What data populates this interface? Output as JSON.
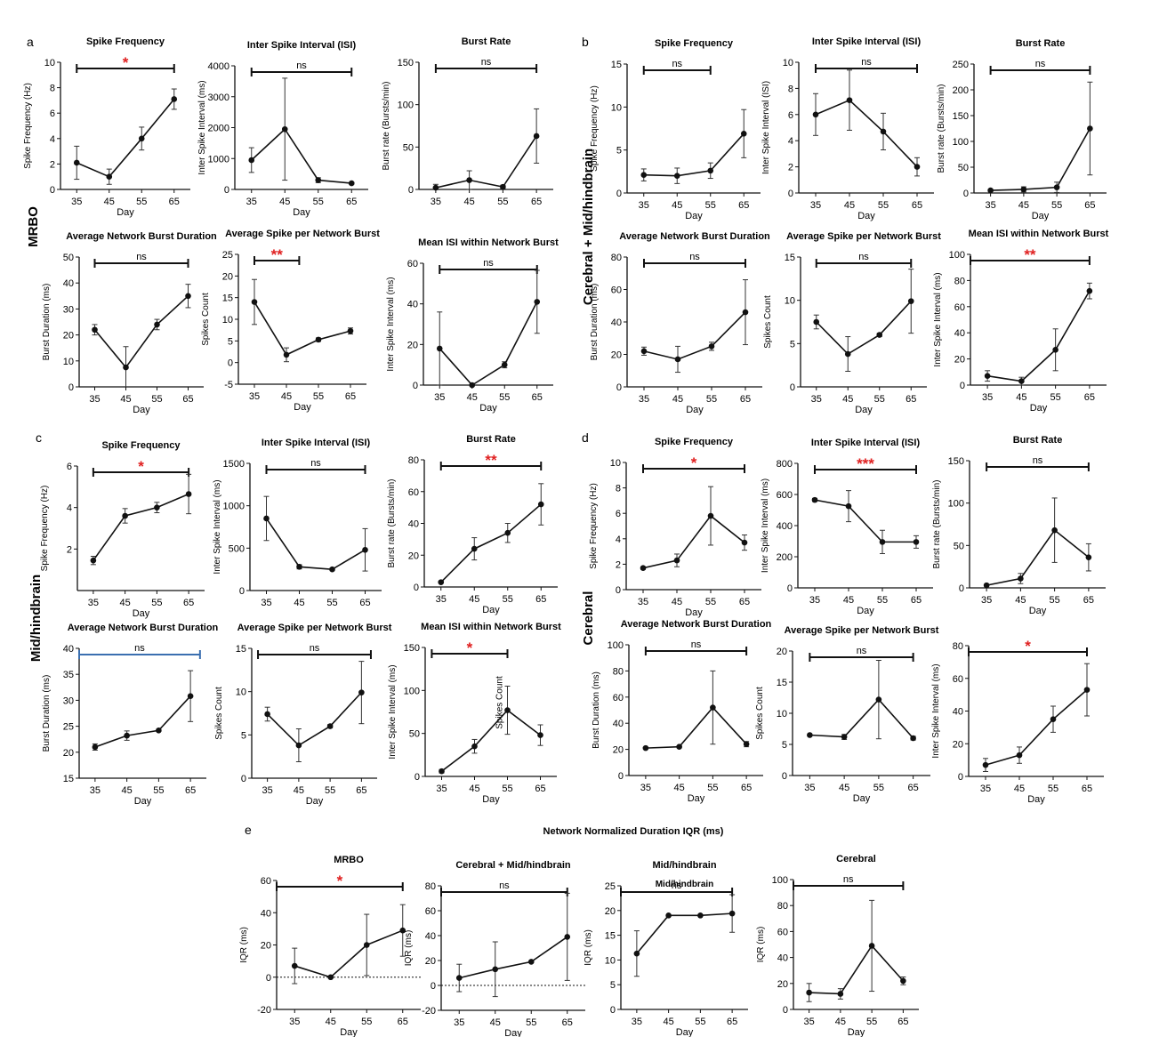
{
  "figure": {
    "panel_letters": {
      "a": "a",
      "b": "b",
      "c": "c",
      "d": "d",
      "e": "e"
    },
    "group_labels": {
      "a": "MRBO",
      "b": "Cerebral + Mid/hindbrain",
      "c": "Mid/hindbrain",
      "d": "Cerebral"
    },
    "panel_e_title": "Network Normalized Duration IQR (ms)",
    "colors": {
      "line": "#111111",
      "significance_star": "#e02020",
      "error_bar": "#333333"
    }
  },
  "chart_data": [
    {
      "id": "a1",
      "panel": "a",
      "type": "line",
      "title": "Spike Frequency",
      "ylabel": "Spike Frequency (Hz)",
      "xlabel": "Day",
      "x": [
        35,
        45,
        55,
        65
      ],
      "values": [
        2.1,
        1.0,
        4.0,
        7.1
      ],
      "errors": [
        1.3,
        0.6,
        0.9,
        0.8
      ],
      "ylim": [
        0,
        10
      ],
      "yticks": [
        0,
        2,
        4,
        6,
        8,
        10
      ],
      "sig": "*",
      "sig_span": [
        35,
        65
      ]
    },
    {
      "id": "a2",
      "panel": "a",
      "type": "line",
      "title": "Inter Spike Interval (ISI)",
      "ylabel": "Inter Spike Interval (ms)",
      "xlabel": "Day",
      "x": [
        35,
        45,
        55,
        65
      ],
      "values": [
        950,
        1950,
        300,
        200
      ],
      "errors": [
        400,
        1650,
        80,
        30
      ],
      "ylim": [
        0,
        4000
      ],
      "yticks": [
        0,
        1000,
        2000,
        3000,
        4000
      ],
      "sig": "ns",
      "sig_span": [
        35,
        65
      ]
    },
    {
      "id": "a3",
      "panel": "a",
      "type": "line",
      "title": "Burst Rate",
      "ylabel": "Burst rate (Bursts/min)",
      "xlabel": "",
      "x": [
        35,
        45,
        55,
        65
      ],
      "values": [
        2,
        11,
        3,
        63
      ],
      "errors": [
        4,
        11,
        2,
        32
      ],
      "ylim": [
        0,
        150
      ],
      "yticks": [
        0,
        50,
        100,
        150
      ],
      "sig": "ns",
      "sig_span": [
        35,
        65
      ]
    },
    {
      "id": "a4",
      "panel": "a",
      "type": "line",
      "title": "Average Network Burst Duration",
      "ylabel": "Burst Duration (ms)",
      "xlabel": "Day",
      "x": [
        35,
        45,
        55,
        65
      ],
      "values": [
        22,
        7.5,
        24,
        35
      ],
      "errors": [
        2,
        8,
        2,
        4.5
      ],
      "ylim": [
        0,
        50
      ],
      "yticks": [
        0,
        10,
        20,
        30,
        40,
        50
      ],
      "sig": "ns",
      "sig_span": [
        35,
        65
      ]
    },
    {
      "id": "a5",
      "panel": "a",
      "type": "line",
      "title": "Average Spike per Network Burst",
      "ylabel": "Spikes Count",
      "xlabel": "Day",
      "x": [
        35,
        45,
        55,
        65
      ],
      "values": [
        14,
        1.8,
        5.3,
        7.3
      ],
      "errors": [
        5.2,
        1.6,
        0.4,
        0.7
      ],
      "ylim": [
        -5,
        25
      ],
      "yticks": [
        -5,
        0,
        5,
        10,
        15,
        20,
        25
      ],
      "sig": "**",
      "sig_span": [
        35,
        49
      ]
    },
    {
      "id": "a6",
      "panel": "a",
      "type": "line",
      "title": "Mean ISI within Network Burst",
      "ylabel": "Inter Spike Interval (ms)",
      "xlabel": "Day",
      "x": [
        35,
        45,
        55,
        65
      ],
      "values": [
        18,
        0,
        10,
        41
      ],
      "errors": [
        18,
        0.5,
        1.5,
        15.5
      ],
      "ylim": [
        0,
        60
      ],
      "yticks": [
        0,
        20,
        40,
        60
      ],
      "sig": "ns",
      "sig_span": [
        35,
        65
      ]
    },
    {
      "id": "b1",
      "panel": "b",
      "type": "line",
      "title": "Spike Frequency",
      "ylabel": "Spike Frequency (Hz)",
      "xlabel": "Day",
      "x": [
        35,
        45,
        55,
        65
      ],
      "values": [
        2.1,
        2.0,
        2.6,
        6.9
      ],
      "errors": [
        0.7,
        0.9,
        0.9,
        2.8
      ],
      "ylim": [
        0,
        15
      ],
      "yticks": [
        0,
        5,
        10,
        15
      ],
      "sig": "ns",
      "sig_span": [
        35,
        55
      ]
    },
    {
      "id": "b2",
      "panel": "b",
      "type": "line",
      "title": "Inter Spike Interval (ISI)",
      "ylabel": "Inter Spike Interval (ISI)",
      "xlabel": "Day",
      "x": [
        35,
        45,
        55,
        65
      ],
      "values": [
        6.0,
        7.1,
        4.7,
        2.0
      ],
      "errors": [
        1.6,
        2.3,
        1.4,
        0.7
      ],
      "ylim": [
        0,
        10
      ],
      "yticks": [
        0,
        2,
        4,
        6,
        8,
        10
      ],
      "sig": "ns",
      "sig_span": [
        35,
        65
      ]
    },
    {
      "id": "b3",
      "panel": "b",
      "type": "line",
      "title": "Burst Rate",
      "ylabel": "Burst rate (Bursts/min)",
      "xlabel": "Day",
      "x": [
        35,
        45,
        55,
        65
      ],
      "values": [
        5,
        7,
        11,
        125
      ],
      "errors": [
        2,
        5,
        10,
        90
      ],
      "ylim": [
        0,
        250
      ],
      "yticks": [
        0,
        50,
        100,
        150,
        200,
        250
      ],
      "sig": "ns",
      "sig_span": [
        35,
        65
      ]
    },
    {
      "id": "b4",
      "panel": "b",
      "type": "line",
      "title": "Average Network Burst Duration",
      "ylabel": "Burst Duration (ms)",
      "xlabel": "Day",
      "x": [
        35,
        45,
        55,
        65
      ],
      "values": [
        22,
        17,
        25,
        46
      ],
      "errors": [
        2.5,
        8,
        2.5,
        20
      ],
      "ylim": [
        0,
        80
      ],
      "yticks": [
        0,
        20,
        40,
        60,
        80
      ],
      "sig": "ns",
      "sig_span": [
        35,
        65
      ]
    },
    {
      "id": "b5",
      "panel": "b",
      "type": "line",
      "title": "Average Spike per Network Burst",
      "ylabel": "Spikes Count",
      "xlabel": "Day",
      "x": [
        35,
        45,
        55,
        65
      ],
      "values": [
        7.5,
        3.8,
        6.0,
        9.9
      ],
      "errors": [
        0.8,
        2.0,
        0.2,
        3.7
      ],
      "ylim": [
        0,
        15
      ],
      "yticks": [
        0,
        5,
        10,
        15
      ],
      "sig": "ns",
      "sig_span": [
        35,
        65
      ]
    },
    {
      "id": "b6",
      "panel": "b",
      "type": "line",
      "title": "Mean ISI within Network Burst",
      "ylabel": "Inter Spike Interval (ms)",
      "xlabel": "Day",
      "x": [
        35,
        45,
        55,
        65
      ],
      "values": [
        7,
        3,
        27,
        72
      ],
      "errors": [
        4,
        3,
        16,
        6
      ],
      "ylim": [
        0,
        100
      ],
      "yticks": [
        0,
        20,
        40,
        60,
        80,
        100
      ],
      "sig": "**",
      "sig_span": [
        30,
        65
      ]
    },
    {
      "id": "c1",
      "panel": "c",
      "type": "line",
      "title": "Spike Frequency",
      "ylabel": "Spike Frequency (Hz)",
      "xlabel": "Day",
      "x": [
        35,
        45,
        55,
        65
      ],
      "values": [
        1.45,
        3.6,
        4.0,
        4.65
      ],
      "errors": [
        0.2,
        0.35,
        0.25,
        0.95
      ],
      "ylim": [
        0,
        6
      ],
      "yticks": [
        2,
        4,
        6
      ],
      "sig": "*",
      "sig_span": [
        35,
        65
      ]
    },
    {
      "id": "c2",
      "panel": "c",
      "type": "line",
      "title": "Inter Spike Interval (ISI)",
      "ylabel": "Inter Spike Interval (ms)",
      "xlabel": "",
      "x": [
        35,
        45,
        55,
        65
      ],
      "values": [
        850,
        280,
        250,
        480
      ],
      "errors": [
        260,
        25,
        15,
        250
      ],
      "ylim": [
        0,
        1500
      ],
      "yticks": [
        0,
        500,
        1000,
        1500
      ],
      "sig": "ns",
      "sig_span": [
        35,
        65
      ]
    },
    {
      "id": "c3",
      "panel": "c",
      "type": "line",
      "title": "Burst Rate",
      "ylabel": "Burst rate (Bursts/min)",
      "xlabel": "Day",
      "x": [
        35,
        45,
        55,
        65
      ],
      "values": [
        3,
        24,
        34,
        52
      ],
      "errors": [
        0.5,
        7,
        6,
        13
      ],
      "ylim": [
        0,
        80
      ],
      "yticks": [
        0,
        20,
        40,
        60,
        80
      ],
      "sig": "**",
      "sig_span": [
        35,
        65
      ]
    },
    {
      "id": "c4",
      "panel": "c",
      "type": "line",
      "title": "Average Network Burst Duration",
      "ylabel": "Burst Duration (ms)",
      "xlabel": "Day",
      "x": [
        35,
        45,
        55,
        65
      ],
      "values": [
        21,
        23.2,
        24.2,
        30.8
      ],
      "errors": [
        0.6,
        0.9,
        0.2,
        4.9
      ],
      "ylim": [
        15,
        40
      ],
      "yticks": [
        15,
        20,
        25,
        30,
        35,
        40
      ],
      "sig": "ns",
      "sig_span": [
        30,
        68
      ]
    },
    {
      "id": "c5",
      "panel": "c",
      "type": "line",
      "title": "Average Spike per Network Burst",
      "ylabel": "Spikes Count",
      "xlabel": "Day",
      "x": [
        35,
        45,
        55,
        65
      ],
      "values": [
        7.4,
        3.8,
        6.0,
        9.9
      ],
      "errors": [
        0.8,
        1.9,
        0.2,
        3.6
      ],
      "ylim": [
        0,
        15
      ],
      "yticks": [
        0,
        5,
        10,
        15
      ],
      "sig": "ns",
      "sig_span": [
        32,
        68
      ]
    },
    {
      "id": "c6",
      "panel": "c",
      "type": "line",
      "title": "Mean ISI within Network Burst",
      "ylabel": "Inter Spike Interval (ms)",
      "xlabel": "Day",
      "extra_label": "Spikes Count",
      "x": [
        35,
        45,
        55,
        65
      ],
      "values": [
        6,
        35,
        77,
        48
      ],
      "errors": [
        2,
        8,
        28,
        12
      ],
      "ylim": [
        0,
        150
      ],
      "yticks": [
        0,
        50,
        100,
        150
      ],
      "sig": "*",
      "sig_span": [
        32,
        55
      ]
    },
    {
      "id": "d1",
      "panel": "d",
      "type": "line",
      "title": "Spike Frequency",
      "ylabel": "Spike Frequency (Hz)",
      "xlabel": "Day",
      "x": [
        35,
        45,
        55,
        65
      ],
      "values": [
        1.7,
        2.3,
        5.8,
        3.7
      ],
      "errors": [
        0.1,
        0.5,
        2.3,
        0.6
      ],
      "ylim": [
        0,
        10
      ],
      "yticks": [
        0,
        2,
        4,
        6,
        8,
        10
      ],
      "sig": "*",
      "sig_span": [
        35,
        65
      ]
    },
    {
      "id": "d2",
      "panel": "d",
      "type": "line",
      "title": "Inter Spike Interval (ISI)",
      "ylabel": "Inter Spike Interval (ms)",
      "xlabel": "Day",
      "x": [
        35,
        45,
        55,
        65
      ],
      "values": [
        565,
        525,
        295,
        295
      ],
      "errors": [
        10,
        100,
        75,
        40
      ],
      "ylim": [
        0,
        800
      ],
      "yticks": [
        0,
        200,
        400,
        600,
        800
      ],
      "sig": "***",
      "sig_span": [
        35,
        65
      ]
    },
    {
      "id": "d3",
      "panel": "d",
      "type": "line",
      "title": "Burst Rate",
      "ylabel": "Burst rate (Bursts/min)",
      "xlabel": "Day",
      "x": [
        35,
        45,
        55,
        65
      ],
      "values": [
        3,
        11,
        68,
        36
      ],
      "errors": [
        0.5,
        6,
        38,
        16
      ],
      "ylim": [
        0,
        150
      ],
      "yticks": [
        0,
        50,
        100,
        150
      ],
      "sig": "ns",
      "sig_span": [
        35,
        65
      ]
    },
    {
      "id": "d4",
      "panel": "d",
      "type": "line",
      "title": "Average Network Burst Duration",
      "ylabel": "Burst Duration (ms)",
      "xlabel": "Day",
      "x": [
        35,
        45,
        55,
        65
      ],
      "values": [
        21,
        22,
        52,
        24
      ],
      "errors": [
        0.5,
        0.8,
        28,
        2
      ],
      "ylim": [
        0,
        100
      ],
      "yticks": [
        0,
        20,
        40,
        60,
        80,
        100
      ],
      "sig": "ns",
      "sig_span": [
        35,
        65
      ]
    },
    {
      "id": "d5",
      "panel": "d",
      "type": "line",
      "title": "Average Spike per Network Burst",
      "ylabel": "Spikes Count",
      "xlabel": "Day",
      "x": [
        35,
        45,
        55,
        65
      ],
      "values": [
        6.5,
        6.2,
        12.2,
        6.0
      ],
      "errors": [
        0.1,
        0.4,
        6.3,
        0.3
      ],
      "ylim": [
        0,
        20
      ],
      "yticks": [
        0,
        5,
        10,
        15,
        20
      ],
      "sig": "ns",
      "sig_span": [
        35,
        65
      ]
    },
    {
      "id": "d6",
      "panel": "d",
      "type": "line",
      "title": "",
      "ylabel": "Inter Spike Interval (ms)",
      "xlabel": "Day",
      "x": [
        35,
        45,
        55,
        65
      ],
      "values": [
        7,
        13,
        35,
        53
      ],
      "errors": [
        4,
        5,
        8,
        16
      ],
      "ylim": [
        0,
        80
      ],
      "yticks": [
        0,
        20,
        40,
        60,
        80
      ],
      "sig": "*",
      "sig_span": [
        30,
        65
      ]
    },
    {
      "id": "e1",
      "panel": "e",
      "type": "line",
      "title": "MRBO",
      "ylabel": "IQR (ms)",
      "xlabel": "Day",
      "x": [
        35,
        45,
        55,
        65
      ],
      "values": [
        7,
        0,
        20,
        29
      ],
      "errors": [
        11,
        0.5,
        19,
        16
      ],
      "ylim": [
        -20,
        60
      ],
      "yticks": [
        -20,
        0,
        20,
        40,
        60
      ],
      "sig": "*",
      "sig_span": [
        30,
        65
      ],
      "zero_line": true
    },
    {
      "id": "e2",
      "panel": "e",
      "type": "line",
      "title": "Cerebral + Mid/hindbrain",
      "ylabel": "IQR (ms)",
      "xlabel": "Day",
      "x": [
        35,
        45,
        55,
        65
      ],
      "values": [
        6,
        13,
        19,
        39
      ],
      "errors": [
        11,
        22,
        0.5,
        35
      ],
      "ylim": [
        -20,
        80
      ],
      "yticks": [
        -20,
        0,
        20,
        40,
        60,
        80
      ],
      "sig": "ns",
      "sig_span": [
        30,
        65
      ],
      "zero_line": true
    },
    {
      "id": "e3",
      "panel": "e",
      "type": "line",
      "title": "Mid/hindbrain",
      "ylabel": "IQR (ms)",
      "xlabel": "Day",
      "extra_label": "Mid/hindbrain",
      "x": [
        35,
        45,
        55,
        65
      ],
      "values": [
        11.3,
        19,
        19,
        19.4
      ],
      "errors": [
        4.6,
        0.1,
        0.1,
        3.8
      ],
      "ylim": [
        0,
        25
      ],
      "yticks": [
        0,
        5,
        10,
        15,
        20,
        25
      ],
      "sig": "ns",
      "sig_span": [
        30,
        65
      ]
    },
    {
      "id": "e4",
      "panel": "e",
      "type": "line",
      "title": "Cerebral",
      "ylabel": "IQR (ms)",
      "xlabel": "Day",
      "x": [
        35,
        45,
        55,
        65
      ],
      "values": [
        13,
        12,
        49,
        22
      ],
      "errors": [
        7,
        4,
        35,
        3
      ],
      "ylim": [
        0,
        100
      ],
      "yticks": [
        0,
        20,
        40,
        60,
        80,
        100
      ],
      "sig": "ns",
      "sig_span": [
        30,
        65
      ]
    }
  ]
}
